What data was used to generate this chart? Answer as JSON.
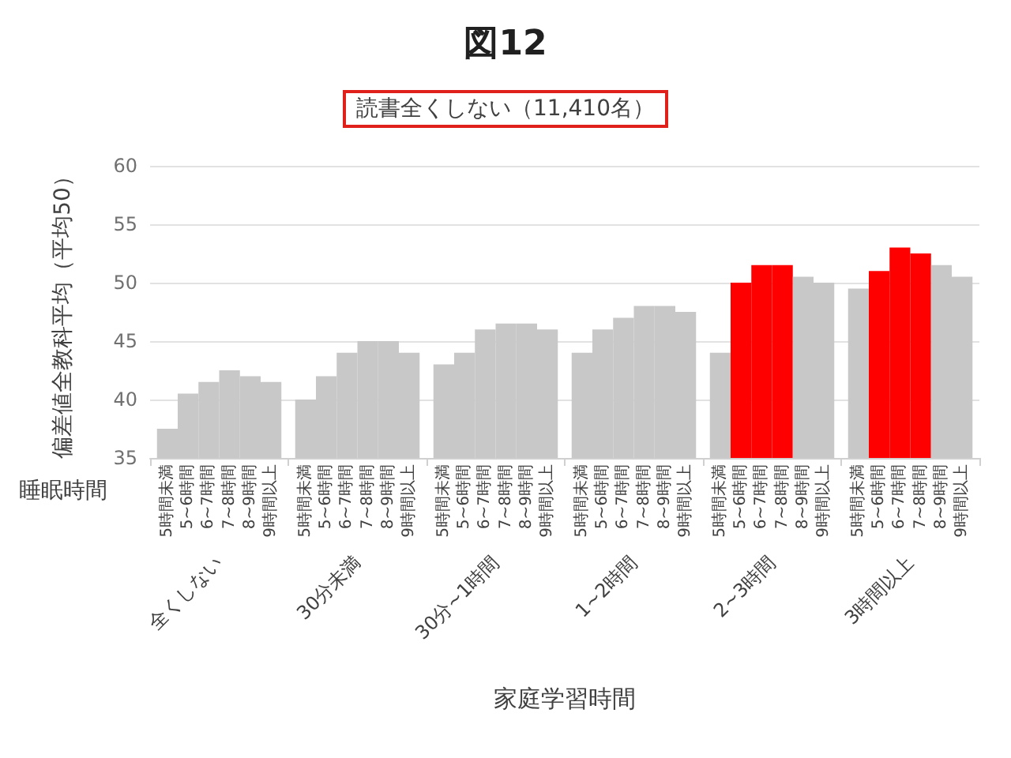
{
  "chart_data": {
    "type": "bar",
    "title": "図12",
    "subtitle": "読書全くしない（11,410名）",
    "xlabel": "家庭学習時間",
    "ylabel": "偏差値全教科平均（平均50）",
    "annotations": [
      "睡眠時間"
    ],
    "categories": [
      "全くしない",
      "30分未満",
      "30分~1時間",
      "1~2時間",
      "2~3時間",
      "3時間以上"
    ],
    "series": [
      {
        "name": "5時間未満",
        "colors": [
          "#c8c8c8",
          "#c8c8c8",
          "#c8c8c8",
          "#c8c8c8",
          "#c8c8c8",
          "#c8c8c8"
        ],
        "values": [
          37.5,
          40,
          43,
          44,
          44,
          49.5
        ]
      },
      {
        "name": "5~6時間",
        "colors": [
          "#c8c8c8",
          "#c8c8c8",
          "#c8c8c8",
          "#c8c8c8",
          "#ff0000",
          "#ff0000"
        ],
        "values": [
          40.5,
          42,
          44,
          46,
          50,
          51
        ]
      },
      {
        "name": "6~7時間",
        "colors": [
          "#c8c8c8",
          "#c8c8c8",
          "#c8c8c8",
          "#c8c8c8",
          "#ff0000",
          "#ff0000"
        ],
        "values": [
          41.5,
          44,
          46,
          47,
          51.5,
          53
        ]
      },
      {
        "name": "7~8時間",
        "colors": [
          "#c8c8c8",
          "#c8c8c8",
          "#c8c8c8",
          "#c8c8c8",
          "#ff0000",
          "#ff0000"
        ],
        "values": [
          42.5,
          45,
          46.5,
          48,
          51.5,
          52.5
        ]
      },
      {
        "name": "8~9時間",
        "colors": [
          "#c8c8c8",
          "#c8c8c8",
          "#c8c8c8",
          "#c8c8c8",
          "#c8c8c8",
          "#c8c8c8"
        ],
        "values": [
          42,
          45,
          46.5,
          48,
          50.5,
          51.5
        ]
      },
      {
        "name": "9時間以上",
        "colors": [
          "#c8c8c8",
          "#c8c8c8",
          "#c8c8c8",
          "#c8c8c8",
          "#c8c8c8",
          "#c8c8c8"
        ],
        "values": [
          41.5,
          44,
          46,
          47.5,
          50,
          50.5
        ]
      }
    ],
    "ylim": [
      35,
      60
    ],
    "yticks": [
      35,
      40,
      45,
      50,
      55,
      60
    ],
    "grid": "y",
    "legend": "bottom"
  }
}
